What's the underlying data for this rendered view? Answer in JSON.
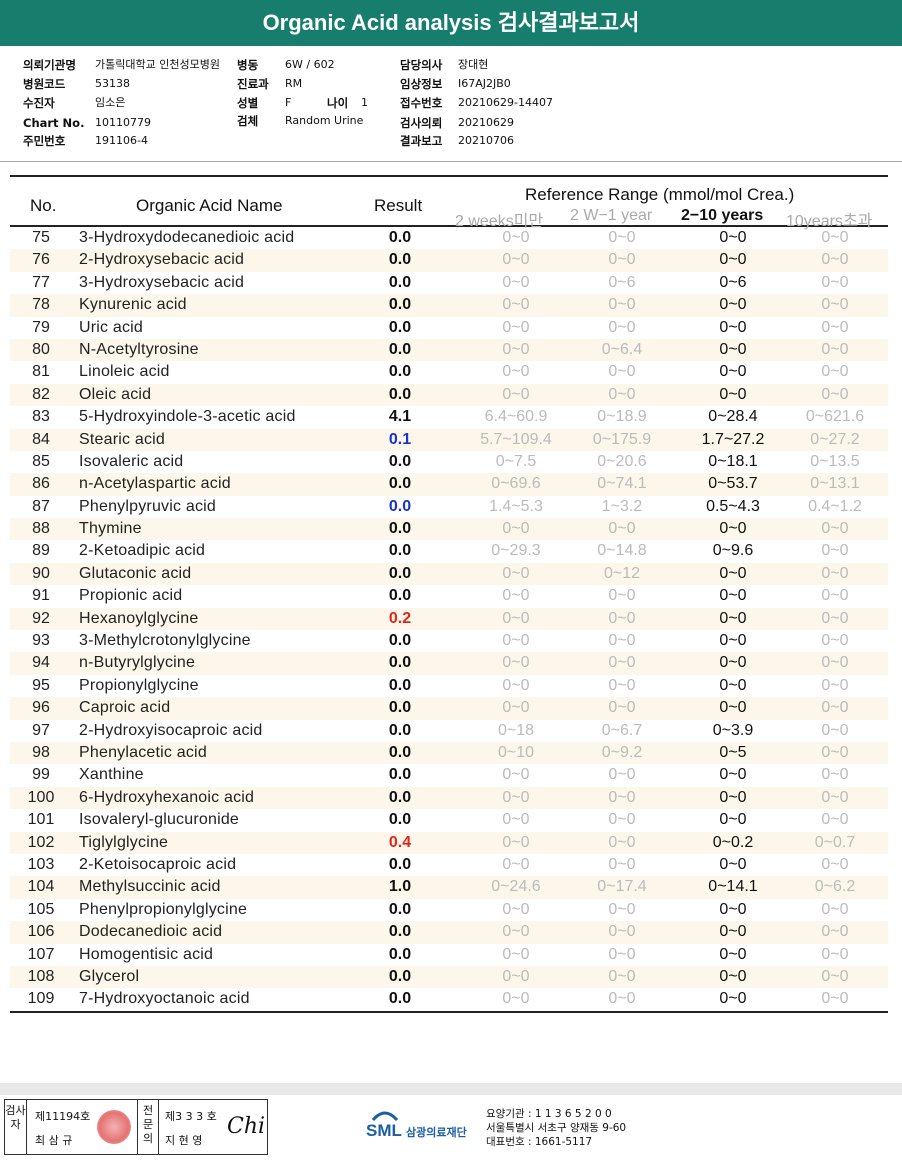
{
  "report": {
    "title": "Organic Acid analysis 검사결과보고서"
  },
  "info": {
    "hospital_label": "의뢰기관명",
    "hospital": "가톨릭대학교 인천성모병원",
    "ward_label": "병동",
    "ward": "6W / 602",
    "doctor_label": "담당의사",
    "doctor": "장대현",
    "code_label": "병원코드",
    "code": "53138",
    "dept_label": "진료과",
    "dept": "RM",
    "clinical_label": "임상정보",
    "clinical": "I67AJ2JB0",
    "patient_label": "수진자",
    "patient": "임소은",
    "sex_label": "성별",
    "sex": "F",
    "age_label": "나이",
    "age": "1",
    "receipt_label": "접수번호",
    "receipt": "20210629-14407",
    "chart_label": "Chart No.",
    "chart": "10110779",
    "specimen_label": "검체",
    "specimen": "Random Urine",
    "request_label": "검사의뢰",
    "request": "20210629",
    "id_label": "주민번호",
    "id": "191106-4",
    "result_label": "결과보고",
    "result": "20210706"
  },
  "table": {
    "col_no": "No.",
    "col_name": "Organic Acid Name",
    "col_result": "Result",
    "col_ref": "Reference Range (mmol/mol Crea.)",
    "sub1": "2 weeks미만",
    "sub2": "2 W−1 year",
    "sub3": "2−10 years",
    "sub4": "10years초과",
    "rows": [
      {
        "no": "75",
        "name": "3-Hydroxydodecanedioic acid",
        "result": "0.0",
        "flag": "",
        "r1": "0~0",
        "r2": "0~0",
        "r3": "0~0",
        "r4": "0~0"
      },
      {
        "no": "76",
        "name": "2-Hydroxysebacic acid",
        "result": "0.0",
        "flag": "",
        "r1": "0~0",
        "r2": "0~0",
        "r3": "0~0",
        "r4": "0~0"
      },
      {
        "no": "77",
        "name": "3-Hydroxysebacic acid",
        "result": "0.0",
        "flag": "",
        "r1": "0~0",
        "r2": "0~6",
        "r3": "0~6",
        "r4": "0~0"
      },
      {
        "no": "78",
        "name": "Kynurenic acid",
        "result": "0.0",
        "flag": "",
        "r1": "0~0",
        "r2": "0~0",
        "r3": "0~0",
        "r4": "0~0"
      },
      {
        "no": "79",
        "name": "Uric acid",
        "result": "0.0",
        "flag": "",
        "r1": "0~0",
        "r2": "0~0",
        "r3": "0~0",
        "r4": "0~0"
      },
      {
        "no": "80",
        "name": "N-Acetyltyrosine",
        "result": "0.0",
        "flag": "",
        "r1": "0~0",
        "r2": "0~6.4",
        "r3": "0~0",
        "r4": "0~0"
      },
      {
        "no": "81",
        "name": "Linoleic acid",
        "result": "0.0",
        "flag": "",
        "r1": "0~0",
        "r2": "0~0",
        "r3": "0~0",
        "r4": "0~0"
      },
      {
        "no": "82",
        "name": "Oleic acid",
        "result": "0.0",
        "flag": "",
        "r1": "0~0",
        "r2": "0~0",
        "r3": "0~0",
        "r4": "0~0"
      },
      {
        "no": "83",
        "name": "5-Hydroxyindole-3-acetic acid",
        "result": "4.1",
        "flag": "",
        "r1": "6.4~60.9",
        "r2": "0~18.9",
        "r3": "0~28.4",
        "r4": "0~621.6"
      },
      {
        "no": "84",
        "name": "Stearic acid",
        "result": "0.1",
        "flag": "blue",
        "r1": "5.7~109.4",
        "r2": "0~175.9",
        "r3": "1.7~27.2",
        "r4": "0~27.2"
      },
      {
        "no": "85",
        "name": "Isovaleric acid",
        "result": "0.0",
        "flag": "",
        "r1": "0~7.5",
        "r2": "0~20.6",
        "r3": "0~18.1",
        "r4": "0~13.5"
      },
      {
        "no": "86",
        "name": "n-Acetylaspartic acid",
        "result": "0.0",
        "flag": "",
        "r1": "0~69.6",
        "r2": "0~74.1",
        "r3": "0~53.7",
        "r4": "0~13.1"
      },
      {
        "no": "87",
        "name": "Phenylpyruvic acid",
        "result": "0.0",
        "flag": "blue",
        "r1": "1.4~5.3",
        "r2": "1~3.2",
        "r3": "0.5~4.3",
        "r4": "0.4~1.2"
      },
      {
        "no": "88",
        "name": "Thymine",
        "result": "0.0",
        "flag": "",
        "r1": "0~0",
        "r2": "0~0",
        "r3": "0~0",
        "r4": "0~0"
      },
      {
        "no": "89",
        "name": "2-Ketoadipic acid",
        "result": "0.0",
        "flag": "",
        "r1": "0~29.3",
        "r2": "0~14.8",
        "r3": "0~9.6",
        "r4": "0~0"
      },
      {
        "no": "90",
        "name": "Glutaconic acid",
        "result": "0.0",
        "flag": "",
        "r1": "0~0",
        "r2": "0~12",
        "r3": "0~0",
        "r4": "0~0"
      },
      {
        "no": "91",
        "name": "Propionic acid",
        "result": "0.0",
        "flag": "",
        "r1": "0~0",
        "r2": "0~0",
        "r3": "0~0",
        "r4": "0~0"
      },
      {
        "no": "92",
        "name": "Hexanoylglycine",
        "result": "0.2",
        "flag": "red",
        "r1": "0~0",
        "r2": "0~0",
        "r3": "0~0",
        "r4": "0~0"
      },
      {
        "no": "93",
        "name": "3-Methylcrotonylglycine",
        "result": "0.0",
        "flag": "",
        "r1": "0~0",
        "r2": "0~0",
        "r3": "0~0",
        "r4": "0~0"
      },
      {
        "no": "94",
        "name": "n-Butyrylglycine",
        "result": "0.0",
        "flag": "",
        "r1": "0~0",
        "r2": "0~0",
        "r3": "0~0",
        "r4": "0~0"
      },
      {
        "no": "95",
        "name": "Propionylglycine",
        "result": "0.0",
        "flag": "",
        "r1": "0~0",
        "r2": "0~0",
        "r3": "0~0",
        "r4": "0~0"
      },
      {
        "no": "96",
        "name": "Caproic acid",
        "result": "0.0",
        "flag": "",
        "r1": "0~0",
        "r2": "0~0",
        "r3": "0~0",
        "r4": "0~0"
      },
      {
        "no": "97",
        "name": "2-Hydroxyisocaproic acid",
        "result": "0.0",
        "flag": "",
        "r1": "0~18",
        "r2": "0~6.7",
        "r3": "0~3.9",
        "r4": "0~0"
      },
      {
        "no": "98",
        "name": "Phenylacetic acid",
        "result": "0.0",
        "flag": "",
        "r1": "0~10",
        "r2": "0~9.2",
        "r3": "0~5",
        "r4": "0~0"
      },
      {
        "no": "99",
        "name": "Xanthine",
        "result": "0.0",
        "flag": "",
        "r1": "0~0",
        "r2": "0~0",
        "r3": "0~0",
        "r4": "0~0"
      },
      {
        "no": "100",
        "name": "6-Hydroxyhexanoic acid",
        "result": "0.0",
        "flag": "",
        "r1": "0~0",
        "r2": "0~0",
        "r3": "0~0",
        "r4": "0~0"
      },
      {
        "no": "101",
        "name": "Isovaleryl-glucuronide",
        "result": "0.0",
        "flag": "",
        "r1": "0~0",
        "r2": "0~0",
        "r3": "0~0",
        "r4": "0~0"
      },
      {
        "no": "102",
        "name": "Tiglylglycine",
        "result": "0.4",
        "flag": "red",
        "r1": "0~0",
        "r2": "0~0",
        "r3": "0~0.2",
        "r4": "0~0.7"
      },
      {
        "no": "103",
        "name": "2-Ketoisocaproic acid",
        "result": "0.0",
        "flag": "",
        "r1": "0~0",
        "r2": "0~0",
        "r3": "0~0",
        "r4": "0~0"
      },
      {
        "no": "104",
        "name": "Methylsuccinic acid",
        "result": "1.0",
        "flag": "",
        "r1": "0~24.6",
        "r2": "0~17.4",
        "r3": "0~14.1",
        "r4": "0~6.2"
      },
      {
        "no": "105",
        "name": "Phenylpropionylglycine",
        "result": "0.0",
        "flag": "",
        "r1": "0~0",
        "r2": "0~0",
        "r3": "0~0",
        "r4": "0~0"
      },
      {
        "no": "106",
        "name": "Dodecanedioic acid",
        "result": "0.0",
        "flag": "",
        "r1": "0~0",
        "r2": "0~0",
        "r3": "0~0",
        "r4": "0~0"
      },
      {
        "no": "107",
        "name": "Homogentisic acid",
        "result": "0.0",
        "flag": "",
        "r1": "0~0",
        "r2": "0~0",
        "r3": "0~0",
        "r4": "0~0"
      },
      {
        "no": "108",
        "name": "Glycerol",
        "result": "0.0",
        "flag": "",
        "r1": "0~0",
        "r2": "0~0",
        "r3": "0~0",
        "r4": "0~0"
      },
      {
        "no": "109",
        "name": "7-Hydroxyoctanoic acid",
        "result": "0.0",
        "flag": "",
        "r1": "0~0",
        "r2": "0~0",
        "r3": "0~0",
        "r4": "0~0"
      }
    ]
  },
  "footer": {
    "col1_label": "검사자",
    "tester_no": "제11194호",
    "tester_name": "최 삼 규",
    "col2_label": "전문의",
    "doctor_no": "제3 3 3 호",
    "doctor_name": "지 현 영",
    "signature": "Chi",
    "logo_text": "SML",
    "org": "삼광의료재단",
    "addr1": "요양기관 : 1 1 3 6 5 2 0 0",
    "addr2": "서울특별시 서초구 양재동 9-60",
    "addr3": "대표번호 : 1661-5117"
  }
}
